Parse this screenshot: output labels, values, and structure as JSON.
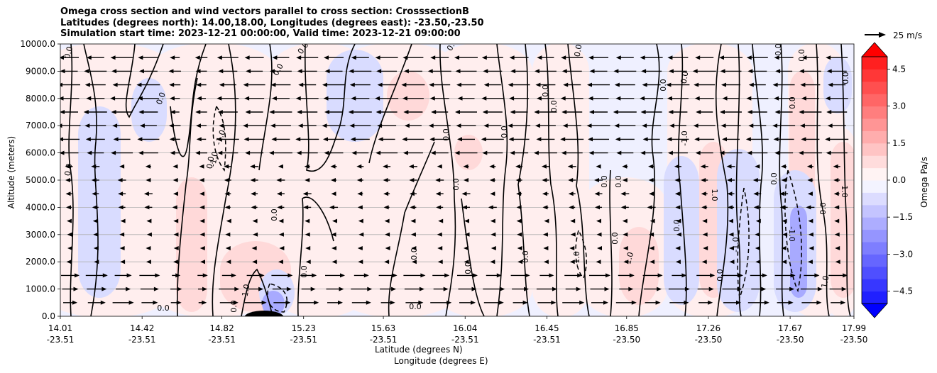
{
  "title_lines": [
    "Omega cross section and wind vectors parallel to cross section: CrosssectionB",
    "Latitudes (degrees north): 14.00,18.00, Longitudes (degrees east): -23.50,-23.50",
    "Simulation start time: 2023-12-21 00:00:00, Valid time: 2023-12-21 09:00:00"
  ],
  "colors": {
    "background_field": "#eff0ff",
    "positive_light": "#ffeeee",
    "positive_mid": "#ffd9d9",
    "negative_mid": "#d9dcff",
    "negative_strong": "#a8aaff",
    "contour": "#000000"
  },
  "chart_data": {
    "type": "cross-section contour with vector field",
    "ylabel": "Altitude (meters)",
    "xlabel_lines": [
      "Latitude (degrees N)",
      "Longitude (degrees E)"
    ],
    "yticks": [
      "0.0",
      "1000.0",
      "2000.0",
      "3000.0",
      "4000.0",
      "5000.0",
      "6000.0",
      "7000.0",
      "8000.0",
      "9000.0",
      "10000.0"
    ],
    "ylim": [
      0,
      10000
    ],
    "grid": true,
    "xticks": [
      {
        "lat": "14.01",
        "lon": "-23.51"
      },
      {
        "lat": "14.42",
        "lon": "-23.51"
      },
      {
        "lat": "14.82",
        "lon": "-23.51"
      },
      {
        "lat": "15.23",
        "lon": "-23.51"
      },
      {
        "lat": "15.63",
        "lon": "-23.51"
      },
      {
        "lat": "16.04",
        "lon": "-23.51"
      },
      {
        "lat": "16.45",
        "lon": "-23.51"
      },
      {
        "lat": "16.85",
        "lon": "-23.50"
      },
      {
        "lat": "17.26",
        "lon": "-23.50"
      },
      {
        "lat": "17.67",
        "lon": "-23.50"
      },
      {
        "lat": "17.99",
        "lon": "-23.50"
      }
    ],
    "xlim": [
      14.01,
      17.99
    ],
    "colorbar": {
      "label": "Omega Pa/s",
      "ticks": [
        "4.5",
        "3.0",
        "1.5",
        "0.0",
        "−1.5",
        "−3.0",
        "−4.5"
      ],
      "range": [
        -5.0,
        5.0
      ]
    },
    "quiver_key": "25 m/s",
    "contour_labels": [
      "0.0",
      "1.0",
      "-1.0"
    ]
  }
}
